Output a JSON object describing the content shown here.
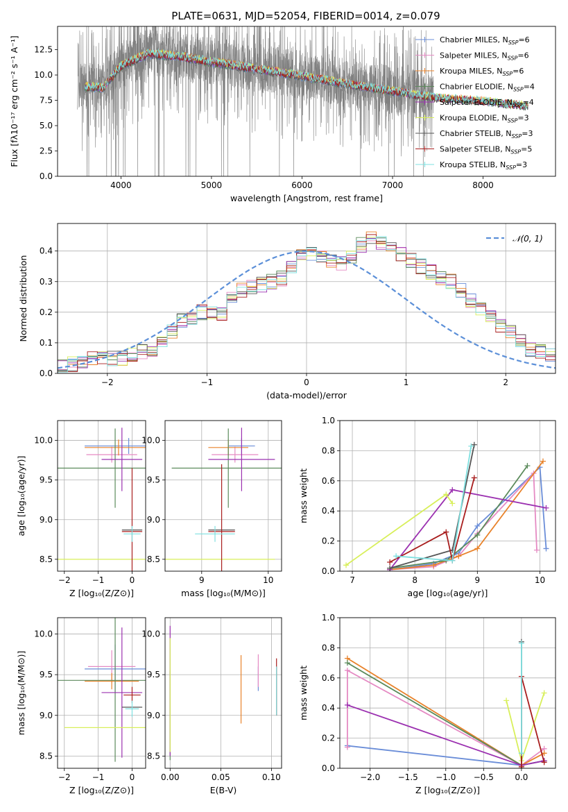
{
  "figure_title": "PLATE=0631, MJD=52054, FIBERID=0014, z=0.079",
  "colors": {
    "c0": "#6a8dd8",
    "c1": "#e58ac3",
    "c2": "#e8822a",
    "c3": "#5b8a5b",
    "c4": "#9b30b0",
    "c5": "#d8ef5a",
    "c6": "#555555",
    "c7": "#a81d1d",
    "c8": "#7ee0e0",
    "data": "#808080",
    "gauss": "#5b8fd8"
  },
  "models": [
    {
      "name": "Chabrier MILES",
      "nssp": "6",
      "color": "#6a8dd8"
    },
    {
      "name": "Salpeter MILES",
      "nssp": "6",
      "color": "#e58ac3"
    },
    {
      "name": "Kroupa MILES",
      "nssp": "6",
      "color": "#e8822a"
    },
    {
      "name": "Chabrier ELODIE",
      "nssp": "4",
      "color": "#5b8a5b"
    },
    {
      "name": "Salpeter ELODIE",
      "nssp": "4",
      "color": "#9b30b0"
    },
    {
      "name": "Kroupa ELODIE",
      "nssp": "3",
      "color": "#d8ef5a"
    },
    {
      "name": "Chabrier STELIB",
      "nssp": "3",
      "color": "#555555"
    },
    {
      "name": "Salpeter STELIB",
      "nssp": "5",
      "color": "#a81d1d"
    },
    {
      "name": "Kroupa STELIB",
      "nssp": "3",
      "color": "#7ee0e0"
    }
  ],
  "legend_suffix": "=",
  "chart_data": [
    {
      "id": "spectrum",
      "type": "line",
      "xlabel": "wavelength [Angstrom, rest frame]",
      "ylabel": "Flux [fλ10⁻¹⁷ erg cm⁻² s⁻¹ A⁻¹]",
      "xlim": [
        3300,
        8800
      ],
      "ylim": [
        0,
        14.8
      ],
      "xticks": [
        4000,
        5000,
        6000,
        7000,
        8000
      ],
      "yticks": [
        0.0,
        2.5,
        5.0,
        7.5,
        10.0,
        12.5
      ],
      "grid": false,
      "legend": "top-right",
      "data_range": [
        3520,
        7450
      ],
      "model_range": [
        3600,
        8500
      ],
      "continuum": [
        [
          3520,
          9.0
        ],
        [
          3800,
          8.8
        ],
        [
          4000,
          11.0
        ],
        [
          4300,
          12.2
        ],
        [
          4600,
          12.0
        ],
        [
          5000,
          11.4
        ],
        [
          5500,
          10.7
        ],
        [
          6000,
          10.0
        ],
        [
          6500,
          9.2
        ],
        [
          7000,
          8.5
        ],
        [
          7500,
          7.8
        ],
        [
          8000,
          7.5
        ],
        [
          8500,
          7.0
        ]
      ]
    },
    {
      "id": "residuals",
      "type": "bar",
      "xlabel": "(data-model)/error",
      "ylabel": "Normed distribution",
      "xlim": [
        -2.5,
        2.5
      ],
      "ylim": [
        0,
        0.49
      ],
      "xticks": [
        -2,
        -1,
        0,
        1,
        2
      ],
      "yticks": [
        0.0,
        0.1,
        0.2,
        0.3,
        0.4
      ],
      "grid": true,
      "legend": "top-right",
      "legend_label": "𝒩(0, 1)",
      "bin_width": 0.1,
      "histogram": [
        0.02,
        0.03,
        0.04,
        0.05,
        0.05,
        0.05,
        0.05,
        0.06,
        0.07,
        0.08,
        0.11,
        0.14,
        0.17,
        0.18,
        0.2,
        0.2,
        0.19,
        0.24,
        0.27,
        0.28,
        0.29,
        0.3,
        0.31,
        0.35,
        0.38,
        0.39,
        0.38,
        0.37,
        0.36,
        0.38,
        0.42,
        0.44,
        0.43,
        0.41,
        0.39,
        0.37,
        0.35,
        0.33,
        0.31,
        0.3,
        0.27,
        0.24,
        0.21,
        0.19,
        0.16,
        0.14,
        0.11,
        0.08,
        0.07,
        0.06
      ]
    },
    {
      "id": "age_vs_Z",
      "type": "scatter",
      "xlabel": "Z [log₁₀(Z/Z⊙)]",
      "ylabel": "age  [log₁₀(age/yr)]",
      "xlim": [
        -2.2,
        0.4
      ],
      "ylim": [
        8.35,
        10.25
      ],
      "xticks": [
        -2,
        -1,
        0
      ],
      "yticks": [
        8.5,
        9.0,
        9.5,
        10.0
      ],
      "grid": true,
      "points": [
        {
          "model": 0,
          "x": -0.1,
          "xerr": 1.3,
          "y": 9.93,
          "yerr": 0.1
        },
        {
          "model": 1,
          "x": -0.6,
          "xerr": 0.75,
          "y": 9.82,
          "yerr": 0.1
        },
        {
          "model": 2,
          "x": -0.4,
          "xerr": 1.0,
          "y": 9.91,
          "yerr": 0.1
        },
        {
          "model": 3,
          "x": -0.5,
          "xerr": 1.8,
          "y": 9.65,
          "yerr": 0.5
        },
        {
          "model": 4,
          "x": -0.3,
          "xerr": 0.6,
          "y": 9.76,
          "yerr": 0.4
        },
        {
          "model": 5,
          "x": -0.5,
          "xerr": 1.9,
          "y": 8.5,
          "yerr": 0.0
        },
        {
          "model": 6,
          "x": 0.0,
          "xerr": 0.3,
          "y": 8.87,
          "yerr": 0.0
        },
        {
          "model": 7,
          "x": 0.0,
          "xerr": 0.3,
          "y": 8.85,
          "yerr": 0.8
        },
        {
          "model": 8,
          "x": 0.0,
          "xerr": 0.25,
          "y": 8.82,
          "yerr": 0.1
        }
      ]
    },
    {
      "id": "age_vs_mass",
      "type": "scatter",
      "xlabel": "mass [log₁₀(M/M⊙)]",
      "ylabel": "",
      "xlim": [
        8.45,
        10.2
      ],
      "ylim": [
        8.35,
        10.25
      ],
      "xticks": [
        9,
        10
      ],
      "yticks": [
        8.5,
        9.0,
        9.5,
        10.0
      ],
      "grid": true,
      "points": [
        {
          "model": 0,
          "x": 9.6,
          "xerr": 0.2,
          "y": 9.93,
          "yerr": 0.1
        },
        {
          "model": 1,
          "x": 9.5,
          "xerr": 0.35,
          "y": 9.82,
          "yerr": 0.1
        },
        {
          "model": 2,
          "x": 9.4,
          "xerr": 0.3,
          "y": 9.91,
          "yerr": 0.1
        },
        {
          "model": 3,
          "x": 9.4,
          "xerr": 0.85,
          "y": 9.65,
          "yerr": 0.5
        },
        {
          "model": 4,
          "x": 9.6,
          "xerr": 0.5,
          "y": 9.76,
          "yerr": 0.4
        },
        {
          "model": 5,
          "x": 9.15,
          "xerr": 0.95,
          "y": 8.5,
          "yerr": 0.0
        },
        {
          "model": 6,
          "x": 9.3,
          "xerr": 0.2,
          "y": 8.87,
          "yerr": 0.0
        },
        {
          "model": 7,
          "x": 9.3,
          "xerr": 0.2,
          "y": 8.85,
          "yerr": 0.85
        },
        {
          "model": 8,
          "x": 9.2,
          "xerr": 0.3,
          "y": 8.82,
          "yerr": 0.1
        }
      ]
    },
    {
      "id": "weight_vs_age",
      "type": "line",
      "xlabel": "age  [log₁₀(age/yr)]",
      "ylabel": "mass weight",
      "xlim": [
        6.8,
        10.25
      ],
      "ylim": [
        0,
        1.0
      ],
      "xticks": [
        7,
        8,
        9,
        10
      ],
      "yticks": [
        0.0,
        0.2,
        0.4,
        0.6,
        0.8,
        1.0
      ],
      "grid": true,
      "series": [
        {
          "model": 0,
          "x": [
            7.6,
            8.3,
            8.7,
            9.0,
            10.0,
            10.1
          ],
          "y": [
            0.01,
            0.05,
            0.12,
            0.3,
            0.69,
            0.15
          ]
        },
        {
          "model": 1,
          "x": [
            7.6,
            8.3,
            8.7,
            9.0,
            9.9,
            9.95
          ],
          "y": [
            0.01,
            0.03,
            0.1,
            0.25,
            0.65,
            0.14
          ]
        },
        {
          "model": 2,
          "x": [
            7.6,
            8.3,
            8.7,
            9.0,
            10.05
          ],
          "y": [
            0.01,
            0.04,
            0.1,
            0.15,
            0.73
          ]
        },
        {
          "model": 3,
          "x": [
            7.6,
            8.5,
            9.0,
            9.8
          ],
          "y": [
            0.02,
            0.07,
            0.24,
            0.7
          ]
        },
        {
          "model": 4,
          "x": [
            7.6,
            8.6,
            10.1
          ],
          "y": [
            0.01,
            0.54,
            0.42
          ]
        },
        {
          "model": 5,
          "x": [
            6.9,
            8.5,
            8.6
          ],
          "y": [
            0.04,
            0.51,
            0.45
          ]
        },
        {
          "model": 6,
          "x": [
            7.6,
            8.6,
            8.95
          ],
          "y": [
            0.02,
            0.14,
            0.84
          ]
        },
        {
          "model": 7,
          "x": [
            7.6,
            8.5,
            8.6,
            8.95
          ],
          "y": [
            0.06,
            0.26,
            0.07,
            0.62
          ]
        },
        {
          "model": 8,
          "x": [
            7.7,
            8.6,
            8.9
          ],
          "y": [
            0.1,
            0.07,
            0.83
          ]
        }
      ]
    },
    {
      "id": "mass_vs_Z",
      "type": "scatter",
      "xlabel": "Z [log₁₀(Z/Z⊙)]",
      "ylabel": "mass [log₁₀(M/M⊙)]",
      "xlim": [
        -2.2,
        0.4
      ],
      "ylim": [
        8.35,
        10.2
      ],
      "xticks": [
        -2,
        -1,
        0
      ],
      "yticks": [
        8.5,
        9.0,
        9.5,
        10.0
      ],
      "grid": true,
      "points": [
        {
          "model": 0,
          "x": -0.5,
          "xerr": 0.9,
          "y": 9.57,
          "yerr": 0.3
        },
        {
          "model": 1,
          "x": -0.6,
          "xerr": 0.7,
          "y": 9.6,
          "yerr": 0.2
        },
        {
          "model": 2,
          "x": -0.6,
          "xerr": 0.8,
          "y": 9.42,
          "yerr": 0.1
        },
        {
          "model": 3,
          "x": -0.5,
          "xerr": 1.8,
          "y": 9.43,
          "yerr": 1.0
        },
        {
          "model": 4,
          "x": -0.3,
          "xerr": 0.6,
          "y": 9.28,
          "yerr": 0.8
        },
        {
          "model": 5,
          "x": -0.5,
          "xerr": 1.5,
          "y": 8.85,
          "yerr": 0.0
        },
        {
          "model": 6,
          "x": 0.0,
          "xerr": 0.3,
          "y": 9.1,
          "yerr": 0.0
        },
        {
          "model": 7,
          "x": 0.0,
          "xerr": 0.25,
          "y": 9.25,
          "yerr": 0.1
        },
        {
          "model": 8,
          "x": 0.0,
          "xerr": 0.2,
          "y": 9.08,
          "yerr": 0.1
        }
      ]
    },
    {
      "id": "mass_vs_EBV",
      "type": "scatter",
      "xlabel": "E(B-V)",
      "ylabel": "",
      "xlim": [
        -0.005,
        0.11
      ],
      "ylim": [
        8.35,
        10.2
      ],
      "xticks": [
        0.0,
        0.05,
        0.1
      ],
      "yticks": [
        8.5,
        9.0,
        9.5,
        10.0
      ],
      "grid": true,
      "points": [
        {
          "model": 0,
          "x": 0.087,
          "xerr": 0.0,
          "y": 9.45,
          "yerr": 0.15
        },
        {
          "model": 1,
          "x": 0.087,
          "xerr": 0.0,
          "y": 9.55,
          "yerr": 0.2
        },
        {
          "model": 2,
          "x": 0.07,
          "xerr": 0.0,
          "y": 9.32,
          "yerr": 0.42
        },
        {
          "model": 3,
          "x": 0.0,
          "xerr": 0.0,
          "y": 9.0,
          "yerr": 0.55
        },
        {
          "model": 4,
          "x": 0.0,
          "xerr": 0.0,
          "y": 9.3,
          "yerr": 0.8
        },
        {
          "model": 5,
          "x": 0.0,
          "xerr": 0.0,
          "y": 9.25,
          "yerr": 0.7
        },
        {
          "model": 6,
          "x": 0.105,
          "xerr": 0.0,
          "y": 9.3,
          "yerr": 0.3
        },
        {
          "model": 7,
          "x": 0.105,
          "xerr": 0.0,
          "y": 9.35,
          "yerr": 0.35
        },
        {
          "model": 8,
          "x": 0.105,
          "xerr": 0.0,
          "y": 9.3,
          "yerr": 0.3
        }
      ]
    },
    {
      "id": "weight_vs_Z",
      "type": "line",
      "xlabel": "Z [log₁₀(Z/Z⊙)]",
      "ylabel": "mass weight",
      "xlim": [
        -2.4,
        0.45
      ],
      "ylim": [
        0,
        1.0
      ],
      "xticks": [
        -2.0,
        -1.5,
        -1.0,
        -0.5,
        0.0
      ],
      "yticks": [
        0.0,
        0.2,
        0.4,
        0.6,
        0.8,
        1.0
      ],
      "grid": true,
      "series": [
        {
          "model": 0,
          "x": [
            -2.3,
            0.0,
            0.3
          ],
          "y": [
            0.15,
            0.02,
            0.05
          ]
        },
        {
          "model": 1,
          "x": [
            -2.3,
            -2.3,
            0.0,
            0.3
          ],
          "y": [
            0.14,
            0.65,
            0.02,
            0.13
          ]
        },
        {
          "model": 2,
          "x": [
            -2.3,
            0.0,
            0.3
          ],
          "y": [
            0.73,
            0.02,
            0.1
          ]
        },
        {
          "model": 3,
          "x": [
            -2.3,
            0.0,
            0.3
          ],
          "y": [
            0.7,
            0.02,
            0.05
          ]
        },
        {
          "model": 4,
          "x": [
            -2.3,
            0.0,
            0.3
          ],
          "y": [
            0.42,
            0.02,
            0.05
          ]
        },
        {
          "model": 5,
          "x": [
            -0.2,
            0.0,
            0.3
          ],
          "y": [
            0.45,
            0.05,
            0.5
          ]
        },
        {
          "model": 6,
          "x": [
            0.0,
            0.0
          ],
          "y": [
            0.0,
            0.84
          ]
        },
        {
          "model": 7,
          "x": [
            0.0,
            0.0,
            0.3
          ],
          "y": [
            0.01,
            0.61,
            0.04
          ]
        },
        {
          "model": 8,
          "x": [
            0.0,
            0.0
          ],
          "y": [
            0.1,
            0.83
          ]
        }
      ]
    }
  ]
}
